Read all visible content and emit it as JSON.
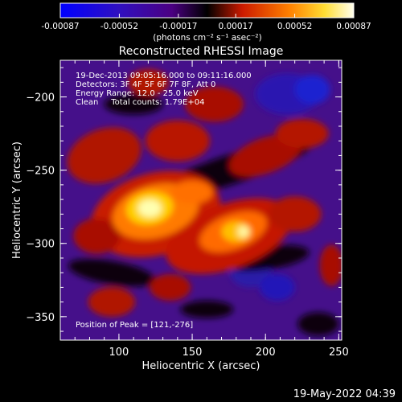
{
  "colorbar": {
    "tick_labels": [
      "-0.00087",
      "-0.00052",
      "-0.00017",
      "0.00017",
      "0.00052",
      "0.00087"
    ],
    "tick_values": [
      -0.00087,
      -0.00052,
      -0.00017,
      0.00017,
      0.00052,
      0.00087
    ],
    "unit_label": "(photons cm⁻² s⁻¹ asec⁻²)"
  },
  "chart_data": {
    "type": "heatmap",
    "title": "Reconstructed RHESSI Image",
    "xlabel": "Heliocentric X (arcsec)",
    "ylabel": "Heliocentric Y (arcsec)",
    "xlim": [
      60,
      252
    ],
    "ylim": [
      -366,
      -175
    ],
    "xticks": [
      100,
      150,
      200,
      250
    ],
    "yticks": [
      -200,
      -250,
      -300,
      -350
    ],
    "zlim": [
      -0.00087,
      0.00087
    ],
    "colormap": [
      "#0000ff",
      "#4b0082",
      "#000000",
      "#cc1a00",
      "#ff8000",
      "#ffff66",
      "#ffffff"
    ],
    "peak": {
      "x": 121,
      "y": -276
    },
    "annotations": {
      "time": "19-Dec-2013 09:05:16.000 to 09:11:16.000",
      "detectors": "Detectors: 3F 4F 5F 6F 7F 8F, Att 0",
      "energy": "Energy Range: 12.0 - 25.0 keV",
      "clean": "Clean     Total counts: 1.79E+04",
      "peak_text": "Position of Peak = [121,-276]"
    }
  },
  "footer": {
    "timestamp": "19-May-2022 04:39"
  }
}
